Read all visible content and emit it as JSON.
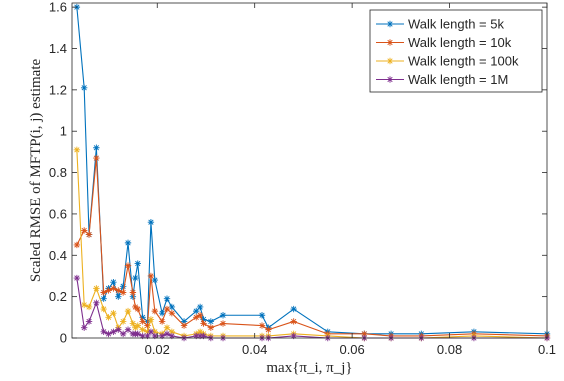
{
  "chart_data": {
    "type": "line",
    "xlabel": "max{π_i, π_j}",
    "ylabel": "Scaled RMSE of MFTP(i, j) estimate",
    "xlim": [
      0.0025,
      0.1
    ],
    "ylim": [
      0,
      1.62
    ],
    "xticks": [
      0.02,
      0.04,
      0.06,
      0.08,
      0.1
    ],
    "xtick_labels": [
      "0.02",
      "0.04",
      "0.06",
      "0.08",
      "0.1"
    ],
    "yticks": [
      0,
      0.2,
      0.4,
      0.6,
      0.8,
      1,
      1.2,
      1.4,
      1.6
    ],
    "ytick_labels": [
      "0",
      "0.2",
      "0.4",
      "0.6",
      "0.8",
      "1",
      "1.2",
      "1.4",
      "1.6"
    ],
    "grid": false,
    "legend_position": "top-right",
    "marker": "asterisk",
    "x": [
      0.0035,
      0.005,
      0.006,
      0.0075,
      0.009,
      0.01,
      0.011,
      0.012,
      0.013,
      0.014,
      0.015,
      0.0155,
      0.016,
      0.017,
      0.018,
      0.0187,
      0.0195,
      0.021,
      0.022,
      0.023,
      0.0255,
      0.028,
      0.0288,
      0.0295,
      0.031,
      0.0335,
      0.0415,
      0.0428,
      0.048,
      0.055,
      0.0625,
      0.068,
      0.0742,
      0.085,
      0.1
    ],
    "series": [
      {
        "name": "Walk length = 5k",
        "color": "#0072BD",
        "values": [
          1.6,
          1.21,
          0.5,
          0.92,
          0.19,
          0.24,
          0.27,
          0.2,
          0.25,
          0.46,
          0.2,
          0.29,
          0.36,
          0.1,
          0.08,
          0.56,
          0.28,
          0.12,
          0.19,
          0.15,
          0.08,
          0.13,
          0.15,
          0.09,
          0.08,
          0.11,
          0.11,
          0.05,
          0.14,
          0.03,
          0.02,
          0.02,
          0.02,
          0.03,
          0.02
        ]
      },
      {
        "name": "Walk length = 10k",
        "color": "#D95319",
        "values": [
          0.45,
          0.52,
          0.5,
          0.87,
          0.22,
          0.23,
          0.24,
          0.23,
          0.22,
          0.35,
          0.22,
          0.15,
          0.14,
          0.08,
          0.06,
          0.3,
          0.13,
          0.08,
          0.14,
          0.12,
          0.06,
          0.1,
          0.11,
          0.07,
          0.05,
          0.07,
          0.06,
          0.04,
          0.08,
          0.02,
          0.02,
          0.01,
          0.01,
          0.02,
          0.01
        ]
      },
      {
        "name": "Walk length = 100k",
        "color": "#EDB120",
        "values": [
          0.91,
          0.16,
          0.15,
          0.24,
          0.14,
          0.1,
          0.12,
          0.05,
          0.08,
          0.13,
          0.07,
          0.05,
          0.06,
          0.04,
          0.03,
          0.09,
          0.03,
          0.02,
          0.05,
          0.03,
          0.01,
          0.02,
          0.03,
          0.02,
          0.01,
          0.01,
          0.01,
          0.01,
          0.02,
          0.01,
          0.0,
          0.0,
          0.0,
          0.01,
          0.0
        ]
      },
      {
        "name": "Walk length = 1M",
        "color": "#7E2F8E",
        "values": [
          0.29,
          0.05,
          0.08,
          0.17,
          0.03,
          0.02,
          0.03,
          0.04,
          0.02,
          0.04,
          0.02,
          0.02,
          0.02,
          0.01,
          0.01,
          0.03,
          0.01,
          0.01,
          0.02,
          0.01,
          0.0,
          0.01,
          0.01,
          0.01,
          0.0,
          0.0,
          0.0,
          0.0,
          0.01,
          0.0,
          0.0,
          0.0,
          0.0,
          0.0,
          0.0
        ]
      }
    ]
  }
}
